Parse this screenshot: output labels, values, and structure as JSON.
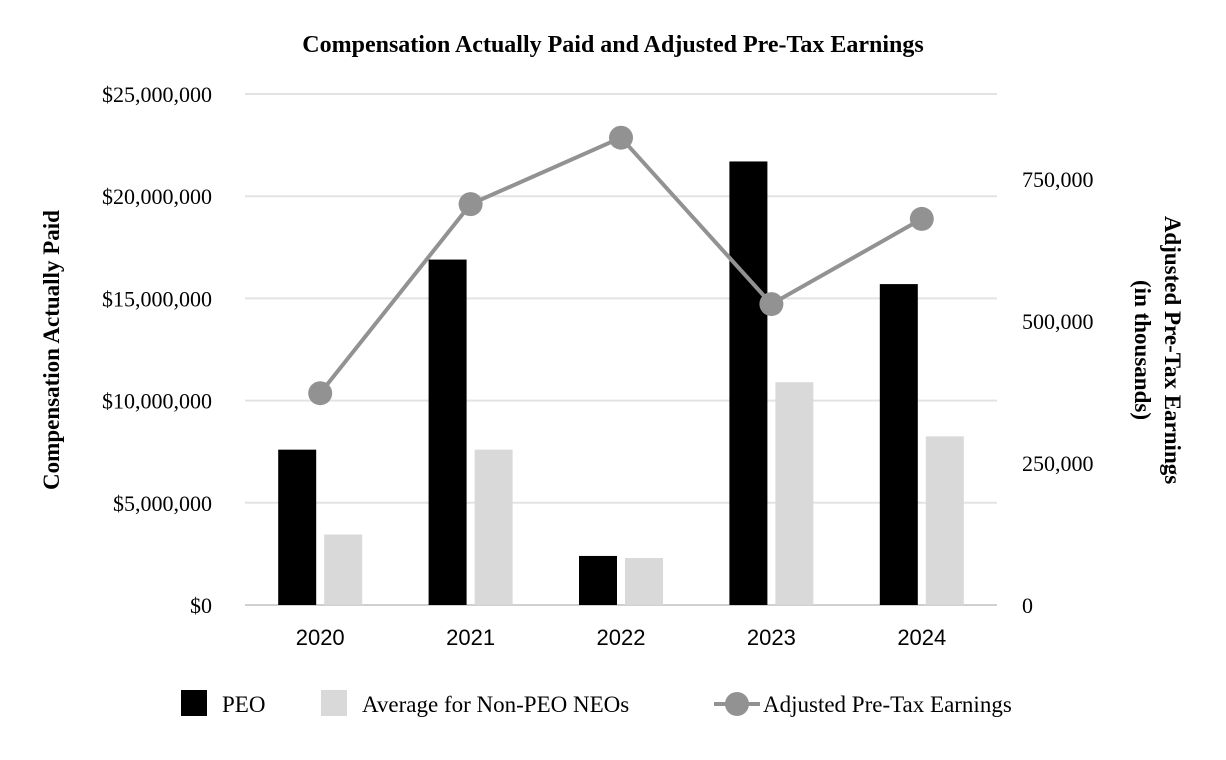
{
  "chart_data": {
    "type": "bar",
    "title": "Compensation Actually Paid and Adjusted Pre-Tax Earnings",
    "categories": [
      "2020",
      "2021",
      "2022",
      "2023",
      "2024"
    ],
    "ylabel": "Compensation Actually Paid",
    "ylabel_right": [
      "Adjusted Pre-Tax Earnings",
      "(in thousands)"
    ],
    "ylim": [
      0,
      25000000
    ],
    "ylim_right": [
      0,
      900000
    ],
    "yticks": [
      0,
      5000000,
      10000000,
      15000000,
      20000000,
      25000000
    ],
    "ytick_labels": [
      "$0",
      "$5,000,000",
      "$10,000,000",
      "$15,000,000",
      "$20,000,000",
      "$25,000,000"
    ],
    "yticks_right": [
      0,
      250000,
      500000,
      750000
    ],
    "ytick_labels_right": [
      "0",
      "250,000",
      "500,000",
      "750,000"
    ],
    "grid": true,
    "legend_position": "bottom",
    "series": [
      {
        "name": "PEO",
        "type": "bar",
        "axis": "left",
        "color": "#000000",
        "values": [
          7600000,
          16900000,
          2400000,
          21700000,
          15700000
        ]
      },
      {
        "name": "Average for Non-PEO NEOs",
        "type": "bar",
        "axis": "left",
        "color": "#d9d9d9",
        "values": [
          3450000,
          7600000,
          2300000,
          10900000,
          8250000
        ]
      },
      {
        "name": "Adjusted Pre-Tax Earnings",
        "type": "line",
        "axis": "right",
        "color": "#929292",
        "values": [
          373000,
          706000,
          823000,
          530000,
          680000
        ]
      }
    ]
  }
}
